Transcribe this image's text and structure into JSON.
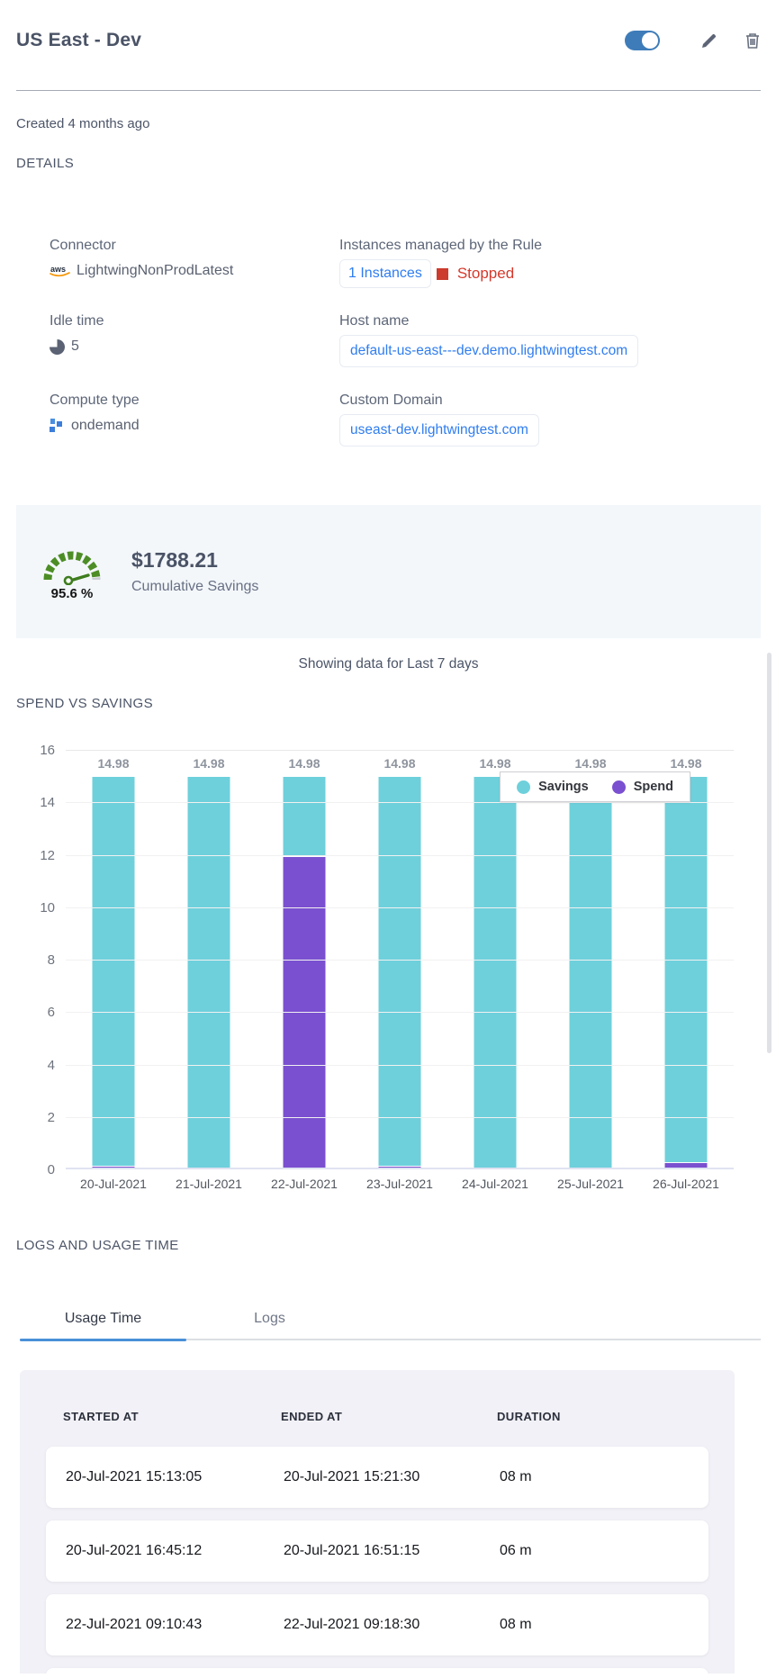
{
  "header": {
    "title": "US East - Dev",
    "toggle_on": true
  },
  "meta": {
    "created": "Created 4 months ago",
    "details_heading": "DETAILS"
  },
  "details": {
    "connector": {
      "label": "Connector",
      "value": "LightwingNonProdLatest",
      "icon": "aws-icon"
    },
    "instances": {
      "label": "Instances managed by the Rule",
      "link": "1 Instances",
      "status": "Stopped"
    },
    "idle_time": {
      "label": "Idle time",
      "value": "5",
      "icon": "clock-icon"
    },
    "host_name": {
      "label": "Host name",
      "value": "default-us-east---dev.demo.lightwingtest.com"
    },
    "compute_type": {
      "label": "Compute type",
      "value": "ondemand",
      "icon": "compute-grid-icon"
    },
    "custom_domain": {
      "label": "Custom Domain",
      "value": "useast-dev.lightwingtest.com"
    }
  },
  "savings": {
    "percent": "95.6 %",
    "amount": "$1788.21",
    "caption": "Cumulative Savings",
    "gauge_color": "#4d8d25"
  },
  "period_note": "Showing data for Last 7 days",
  "chart_heading": "SPEND VS SAVINGS",
  "chart_data": {
    "type": "bar",
    "stacked": true,
    "title": "SPEND VS SAVINGS",
    "categories": [
      "20-Jul-2021",
      "21-Jul-2021",
      "22-Jul-2021",
      "23-Jul-2021",
      "24-Jul-2021",
      "25-Jul-2021",
      "26-Jul-2021"
    ],
    "series": [
      {
        "name": "Spend",
        "color": "#7a50d0",
        "values": [
          0.13,
          0,
          11.95,
          0.13,
          0,
          0,
          0.27
        ]
      },
      {
        "name": "Savings",
        "color": "#6ed0db",
        "values": [
          14.85,
          14.98,
          3.03,
          14.85,
          14.98,
          14.98,
          14.71
        ]
      }
    ],
    "bar_total_labels": [
      "14.98",
      "14.98",
      "14.98",
      "14.98",
      "14.98",
      "14.98",
      "14.98"
    ],
    "ylim": [
      0,
      16
    ],
    "ytick_step": 2,
    "grid": true,
    "legend": [
      "Savings",
      "Spend"
    ],
    "legend_position": "top-right"
  },
  "logs_section": {
    "heading": "LOGS AND USAGE TIME",
    "tabs": [
      {
        "label": "Usage Time",
        "active": true
      },
      {
        "label": "Logs",
        "active": false
      }
    ]
  },
  "usage_table": {
    "columns": [
      "STARTED AT",
      "ENDED AT",
      "DURATION"
    ],
    "rows": [
      {
        "started_at": "20-Jul-2021 15:13:05",
        "ended_at": "20-Jul-2021 15:21:30",
        "duration": "08 m"
      },
      {
        "started_at": "20-Jul-2021 16:45:12",
        "ended_at": "20-Jul-2021 16:51:15",
        "duration": "06 m"
      },
      {
        "started_at": "22-Jul-2021 09:10:43",
        "ended_at": "22-Jul-2021 09:18:30",
        "duration": "08 m"
      }
    ]
  }
}
